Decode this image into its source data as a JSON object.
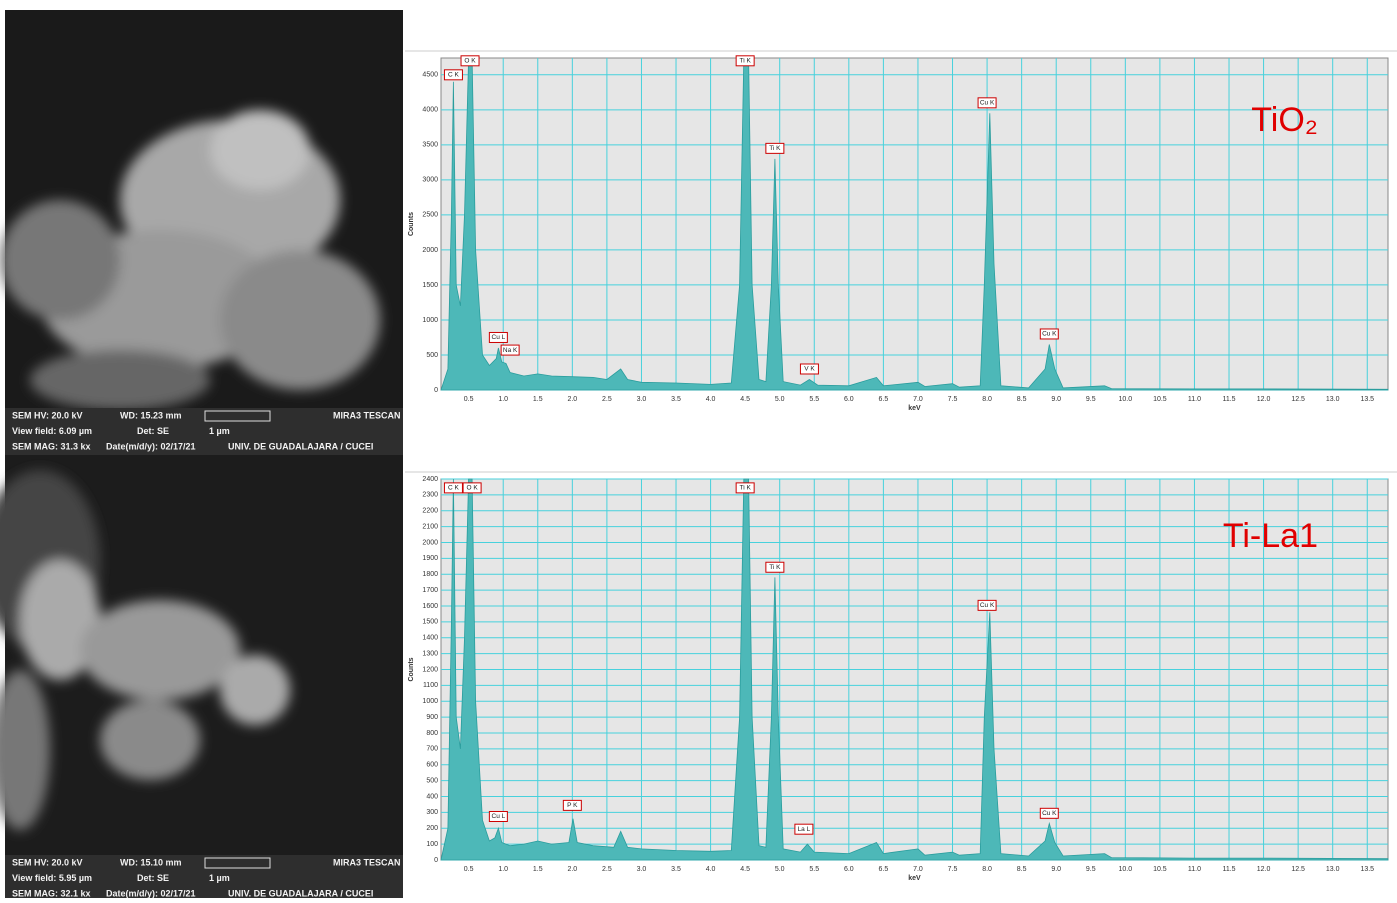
{
  "chart_data": [
    {
      "type": "spectrum",
      "title": "TiO₂",
      "ylabel": "Counts",
      "xlabel": "keV",
      "color": "#4db8b8",
      "grid": true,
      "xlim": [
        0.1,
        13.8
      ],
      "ylim": [
        0,
        4740
      ],
      "xticks": [
        0.5,
        {
          "value": 1,
          "label": "1.0"
        },
        1.5,
        {
          "value": 2,
          "label": "2.0"
        },
        2.5,
        {
          "value": 3,
          "label": "3.0"
        },
        3.5,
        {
          "value": 4,
          "label": "4.0"
        },
        4.5,
        {
          "value": 5,
          "label": "5.0"
        },
        5.5,
        {
          "value": 6,
          "label": "6.0"
        },
        6.5,
        {
          "value": 7,
          "label": "7.0"
        },
        7.5,
        {
          "value": 8,
          "label": "8.0"
        },
        8.5,
        {
          "value": 9,
          "label": "9.0"
        },
        9.5,
        {
          "value": 10,
          "label": "10.0"
        },
        10.5,
        {
          "value": 11,
          "label": "11.0"
        },
        11.5,
        {
          "value": 12,
          "label": "12.0"
        },
        12.5,
        {
          "value": 13,
          "label": "13.0"
        },
        13.5
      ],
      "yticks": [
        0,
        500,
        1000,
        1500,
        2000,
        2500,
        3000,
        3500,
        4000,
        4500
      ],
      "x": [
        0.1,
        0.2,
        0.25,
        0.28,
        0.32,
        0.38,
        0.44,
        0.5,
        0.55,
        0.6,
        0.7,
        0.8,
        0.9,
        0.93,
        0.98,
        1.04,
        1.1,
        1.3,
        1.5,
        1.7,
        2.0,
        2.3,
        2.5,
        2.7,
        2.8,
        3.0,
        3.5,
        4.0,
        4.3,
        4.42,
        4.48,
        4.55,
        4.6,
        4.7,
        4.8,
        4.88,
        4.93,
        4.98,
        5.05,
        5.3,
        5.43,
        5.55,
        6.0,
        6.4,
        6.5,
        7.0,
        7.1,
        7.5,
        7.6,
        7.9,
        7.96,
        8.04,
        8.1,
        8.2,
        8.6,
        8.84,
        8.9,
        8.98,
        9.1,
        9.7,
        9.8,
        11.0,
        12.0,
        13.8
      ],
      "values": [
        0,
        300,
        2500,
        4400,
        1500,
        1200,
        2500,
        4740,
        4740,
        2000,
        500,
        350,
        450,
        600,
        400,
        380,
        250,
        200,
        230,
        200,
        190,
        180,
        150,
        300,
        150,
        110,
        100,
        80,
        100,
        1500,
        4740,
        4740,
        1500,
        150,
        120,
        1500,
        3300,
        1500,
        120,
        70,
        150,
        70,
        60,
        180,
        60,
        110,
        50,
        90,
        40,
        60,
        1500,
        3950,
        1800,
        60,
        30,
        300,
        650,
        300,
        30,
        60,
        20,
        15,
        15,
        10
      ],
      "annotations": [
        {
          "text": "C K",
          "x": 0.28,
          "y": 4400
        },
        {
          "text": "O K",
          "x": 0.52,
          "y": 4600
        },
        {
          "text": "Cu L",
          "x": 0.93,
          "y": 650
        },
        {
          "text": "Na K",
          "x": 1.1,
          "y": 470
        },
        {
          "text": "Ti K",
          "x": 4.5,
          "y": 4600
        },
        {
          "text": "Ti K",
          "x": 4.93,
          "y": 3350
        },
        {
          "text": "V K",
          "x": 5.43,
          "y": 200
        },
        {
          "text": "Cu K",
          "x": 8.0,
          "y": 4000
        },
        {
          "text": "Cu K",
          "x": 8.9,
          "y": 700
        }
      ]
    },
    {
      "type": "spectrum",
      "title": "Ti-La1",
      "ylabel": "Counts",
      "xlabel": "keV",
      "color": "#4db8b8",
      "grid": true,
      "xlim": [
        0.1,
        13.8
      ],
      "ylim": [
        0,
        2400
      ],
      "xticks": [
        0.5,
        {
          "value": 1,
          "label": "1.0"
        },
        1.5,
        {
          "value": 2,
          "label": "2.0"
        },
        2.5,
        {
          "value": 3,
          "label": "3.0"
        },
        3.5,
        {
          "value": 4,
          "label": "4.0"
        },
        4.5,
        {
          "value": 5,
          "label": "5.0"
        },
        5.5,
        {
          "value": 6,
          "label": "6.0"
        },
        6.5,
        {
          "value": 7,
          "label": "7.0"
        },
        7.5,
        {
          "value": 8,
          "label": "8.0"
        },
        8.5,
        {
          "value": 9,
          "label": "9.0"
        },
        9.5,
        {
          "value": 10,
          "label": "10.0"
        },
        10.5,
        {
          "value": 11,
          "label": "11.0"
        },
        11.5,
        {
          "value": 12,
          "label": "12.0"
        },
        12.5,
        {
          "value": 13,
          "label": "13.0"
        },
        13.5
      ],
      "yticks": [
        0,
        100,
        200,
        300,
        400,
        500,
        600,
        700,
        800,
        900,
        1000,
        1100,
        1200,
        1300,
        1400,
        1500,
        1600,
        1700,
        1800,
        1900,
        2000,
        2100,
        2200,
        2300,
        2400
      ],
      "x": [
        0.1,
        0.2,
        0.25,
        0.28,
        0.32,
        0.38,
        0.44,
        0.5,
        0.55,
        0.6,
        0.7,
        0.8,
        0.88,
        0.93,
        0.98,
        1.1,
        1.3,
        1.5,
        1.7,
        1.95,
        2.01,
        2.07,
        2.3,
        2.6,
        2.7,
        2.8,
        3.0,
        3.5,
        4.0,
        4.3,
        4.42,
        4.48,
        4.55,
        4.6,
        4.7,
        4.8,
        4.88,
        4.93,
        4.98,
        5.05,
        5.3,
        5.4,
        5.5,
        6.0,
        6.4,
        6.5,
        7.0,
        7.1,
        7.5,
        7.6,
        7.9,
        7.96,
        8.04,
        8.1,
        8.2,
        8.6,
        8.84,
        8.9,
        8.98,
        9.1,
        9.7,
        9.8,
        11.0,
        12.0,
        13.8
      ],
      "values": [
        0,
        200,
        1500,
        2400,
        900,
        700,
        1400,
        2400,
        2400,
        1000,
        250,
        120,
        140,
        200,
        110,
        90,
        100,
        120,
        100,
        110,
        260,
        110,
        90,
        80,
        180,
        80,
        70,
        60,
        55,
        60,
        900,
        2400,
        2400,
        900,
        90,
        80,
        900,
        1780,
        900,
        70,
        50,
        100,
        50,
        40,
        110,
        40,
        70,
        30,
        50,
        30,
        40,
        900,
        1560,
        700,
        40,
        25,
        120,
        230,
        110,
        25,
        40,
        15,
        12,
        12,
        8
      ],
      "annotations": [
        {
          "text": "C K",
          "x": 0.28,
          "y": 2300
        },
        {
          "text": "O K",
          "x": 0.55,
          "y": 2300
        },
        {
          "text": "Cu L",
          "x": 0.93,
          "y": 230
        },
        {
          "text": "P K",
          "x": 2.0,
          "y": 300
        },
        {
          "text": "Ti K",
          "x": 4.5,
          "y": 2300
        },
        {
          "text": "Ti K",
          "x": 4.93,
          "y": 1800
        },
        {
          "text": "La L",
          "x": 5.35,
          "y": 150
        },
        {
          "text": "Cu K",
          "x": 8.0,
          "y": 1560
        },
        {
          "text": "Cu K",
          "x": 8.9,
          "y": 250
        }
      ]
    }
  ],
  "sem_panels": [
    {
      "rows": [
        [
          "SEM HV: 20.0 kV",
          "WD: 15.23 mm",
          "MIRA3 TESCAN"
        ],
        [
          "View field: 6.09 µm",
          "Det: SE",
          "1 µm"
        ],
        [
          "SEM MAG: 31.3 kx",
          "Date(m/d/y): 02/17/21",
          "UNIV. DE GUADALAJARA / CUCEI"
        ]
      ]
    },
    {
      "rows": [
        [
          "SEM HV: 20.0 kV",
          "WD: 15.10 mm",
          "MIRA3 TESCAN"
        ],
        [
          "View field: 5.95 µm",
          "Det: SE",
          "1 µm"
        ],
        [
          "SEM MAG: 32.1 kx",
          "Date(m/d/y): 02/17/21",
          "UNIV. DE GUADALAJARA / CUCEI"
        ]
      ]
    }
  ]
}
